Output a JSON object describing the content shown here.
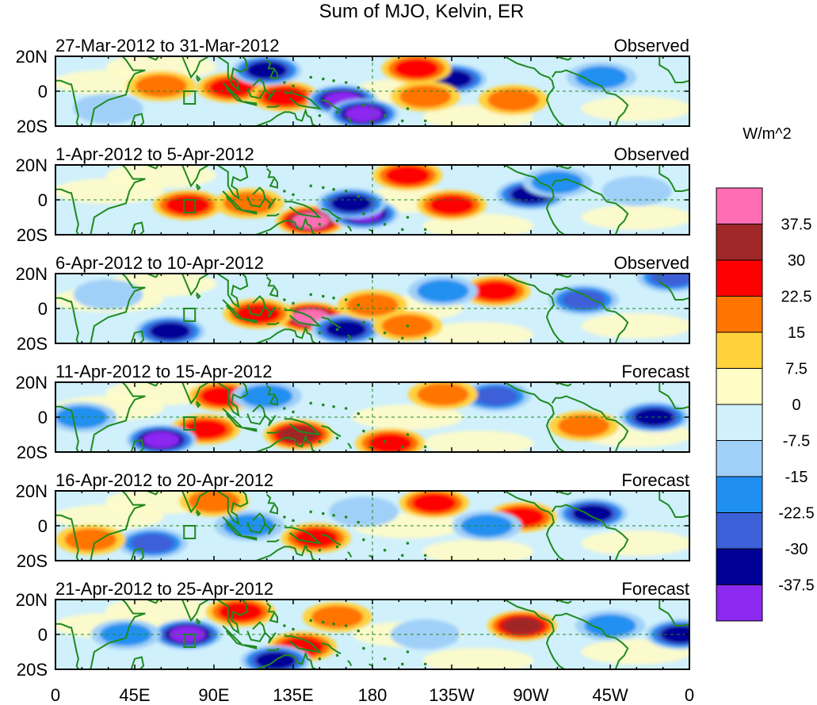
{
  "chart_data": {
    "type": "heatmap",
    "title": "Sum of MJO, Kelvin, ER",
    "colorbar": {
      "unit": "W/m^2",
      "tick_labels": [
        "37.5",
        "30",
        "22.5",
        "15",
        "7.5",
        "0",
        "-7.5",
        "-15",
        "-22.5",
        "-30",
        "-37.5"
      ],
      "colors_top_to_bottom": [
        "#ff6eb4",
        "#a02828",
        "#ff0000",
        "#ff7500",
        "#ffd23c",
        "#fffcc6",
        "#d0f0fc",
        "#a0d0f8",
        "#2090f0",
        "#3c60d8",
        "#000096",
        "#8c28f0"
      ]
    },
    "x_ticks": [
      "0",
      "45E",
      "90E",
      "135E",
      "180",
      "135W",
      "90W",
      "45W",
      "0"
    ],
    "y_ticks": [
      "20N",
      "0",
      "20S"
    ],
    "panels": [
      {
        "period": "27-Mar-2012 to 31-Mar-2012",
        "status": "Observed",
        "blobs": [
          {
            "lon": 100,
            "lat": 2,
            "value": 22.5
          },
          {
            "lon": 130,
            "lat": -3,
            "value": 22.5
          },
          {
            "lon": 60,
            "lat": 3,
            "value": 15
          },
          {
            "lon": 163,
            "lat": -5,
            "value": -37.5
          },
          {
            "lon": 175,
            "lat": -13,
            "value": -37.5
          },
          {
            "lon": 120,
            "lat": 12,
            "value": -30
          },
          {
            "lon": 225,
            "lat": 7,
            "value": -30
          },
          {
            "lon": 205,
            "lat": 13,
            "value": 22.5
          },
          {
            "lon": 260,
            "lat": -5,
            "value": 15
          },
          {
            "lon": 210,
            "lat": -3,
            "value": 15
          },
          {
            "lon": 310,
            "lat": 8,
            "value": -15
          },
          {
            "lon": 30,
            "lat": -10,
            "value": -7.5
          }
        ]
      },
      {
        "period": "1-Apr-2012 to 5-Apr-2012",
        "status": "Observed",
        "blobs": [
          {
            "lon": 145,
            "lat": -12,
            "value": 37.5
          },
          {
            "lon": 75,
            "lat": -3,
            "value": 22.5
          },
          {
            "lon": 110,
            "lat": -2,
            "value": 15
          },
          {
            "lon": 175,
            "lat": -8,
            "value": -37.5
          },
          {
            "lon": 168,
            "lat": -2,
            "value": -30
          },
          {
            "lon": 200,
            "lat": 14,
            "value": 22.5
          },
          {
            "lon": 225,
            "lat": -3,
            "value": 22.5
          },
          {
            "lon": 270,
            "lat": 3,
            "value": -30
          },
          {
            "lon": 285,
            "lat": 10,
            "value": -15
          },
          {
            "lon": 330,
            "lat": 5,
            "value": -7.5
          }
        ]
      },
      {
        "period": "6-Apr-2012 to 10-Apr-2012",
        "status": "Observed",
        "blobs": [
          {
            "lon": 145,
            "lat": -5,
            "value": 37.5
          },
          {
            "lon": 115,
            "lat": -3,
            "value": 22.5
          },
          {
            "lon": 165,
            "lat": -12,
            "value": -30
          },
          {
            "lon": 65,
            "lat": -13,
            "value": -30
          },
          {
            "lon": 180,
            "lat": 2,
            "value": 15
          },
          {
            "lon": 200,
            "lat": -10,
            "value": 15
          },
          {
            "lon": 250,
            "lat": 10,
            "value": 22.5
          },
          {
            "lon": 300,
            "lat": 5,
            "value": -22.5
          },
          {
            "lon": 220,
            "lat": 10,
            "value": -15
          },
          {
            "lon": 30,
            "lat": 8,
            "value": -7.5
          },
          {
            "lon": 350,
            "lat": 18,
            "value": -22.5
          }
        ]
      },
      {
        "period": "11-Apr-2012 to 15-Apr-2012",
        "status": "Forecast",
        "blobs": [
          {
            "lon": 138,
            "lat": -10,
            "value": 30
          },
          {
            "lon": 85,
            "lat": -7,
            "value": 22.5
          },
          {
            "lon": 60,
            "lat": -13,
            "value": -37.5
          },
          {
            "lon": 95,
            "lat": 12,
            "value": 22.5
          },
          {
            "lon": 250,
            "lat": 12,
            "value": -22.5
          },
          {
            "lon": 220,
            "lat": 13,
            "value": 15
          },
          {
            "lon": 190,
            "lat": -15,
            "value": 22.5
          },
          {
            "lon": 340,
            "lat": 0,
            "value": -30
          },
          {
            "lon": 120,
            "lat": 12,
            "value": -15
          },
          {
            "lon": 15,
            "lat": 0,
            "value": -15
          },
          {
            "lon": 300,
            "lat": -5,
            "value": 15
          }
        ]
      },
      {
        "period": "16-Apr-2012 to 20-Apr-2012",
        "status": "Forecast",
        "blobs": [
          {
            "lon": 148,
            "lat": -7,
            "value": 22.5
          },
          {
            "lon": 265,
            "lat": 5,
            "value": 22.5
          },
          {
            "lon": 215,
            "lat": 13,
            "value": 22.5
          },
          {
            "lon": 305,
            "lat": 7,
            "value": -30
          },
          {
            "lon": 55,
            "lat": -10,
            "value": -22.5
          },
          {
            "lon": 110,
            "lat": 0,
            "value": -15
          },
          {
            "lon": 20,
            "lat": -8,
            "value": 15
          },
          {
            "lon": 90,
            "lat": 14,
            "value": 15
          },
          {
            "lon": 245,
            "lat": 0,
            "value": -15
          },
          {
            "lon": 175,
            "lat": 8,
            "value": -7.5
          }
        ]
      },
      {
        "period": "21-Apr-2012 to 25-Apr-2012",
        "status": "Forecast",
        "blobs": [
          {
            "lon": 265,
            "lat": 5,
            "value": 30
          },
          {
            "lon": 105,
            "lat": 13,
            "value": 22.5
          },
          {
            "lon": 140,
            "lat": -7,
            "value": 22.5
          },
          {
            "lon": 125,
            "lat": -15,
            "value": -30
          },
          {
            "lon": 75,
            "lat": 0,
            "value": -37.5
          },
          {
            "lon": 355,
            "lat": 0,
            "value": -30
          },
          {
            "lon": 40,
            "lat": 0,
            "value": -15
          },
          {
            "lon": 315,
            "lat": 5,
            "value": -15
          },
          {
            "lon": 160,
            "lat": 10,
            "value": 15
          },
          {
            "lon": 210,
            "lat": 0,
            "value": -7.5
          }
        ]
      }
    ]
  }
}
